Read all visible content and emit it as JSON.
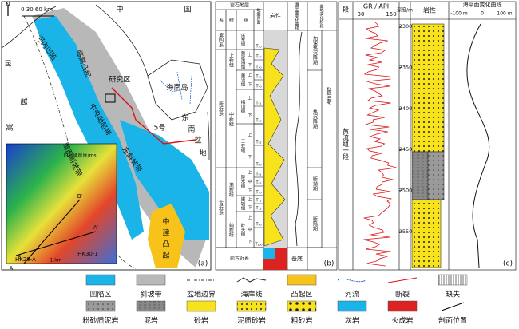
{
  "panel_a": {
    "label": "(a)",
    "north": "N",
    "scale": "0  30 60 km",
    "places": [
      "中",
      "国",
      "昆",
      "越",
      "嵩",
      "研究区",
      "海南岛",
      "5号",
      "中",
      "建",
      "凸",
      "起",
      "东",
      "南",
      "盆",
      "地"
    ],
    "regions": [
      "河内凹陷",
      "临高凸起",
      "莺西斜坡带",
      "中央坳陷带",
      "东斜坡带"
    ],
    "inset": {
      "title": "时间域厚度/ms",
      "wells": [
        "HK29-A",
        "HK30-1"
      ],
      "scale": "1 km",
      "sections": [
        "A",
        "A′",
        "B",
        "B′"
      ]
    }
  },
  "panel_b": {
    "label": "(b)",
    "header": {
      "group": "岩石地层",
      "system": "系",
      "series": "统",
      "formation": "组",
      "seismic": "地震界面",
      "lithology": "岩性",
      "sea_level": "海平面变化曲线",
      "evolution": "盆地演化阶段"
    },
    "systems": [
      "第四系",
      "新近系",
      "古近系",
      "前古近系"
    ],
    "series": [
      "上新统",
      "中新统",
      "渐新统",
      "始新统"
    ],
    "formations": [
      "乐东组",
      "莺歌海组",
      "黄流组",
      "梅山组",
      "三亚组",
      "陵水组",
      "崖城组",
      "岭头组"
    ],
    "members": [
      "上",
      "下",
      "上",
      "下",
      "上",
      "下",
      "上",
      "下",
      "上",
      "中",
      "下",
      "上",
      "下",
      "上",
      "中",
      "下"
    ],
    "seismic": [
      "T₂₀",
      "T₂₇",
      "T₃₀",
      "T₃₁",
      "T₄₀",
      "T₄₁",
      "T₅₀",
      "T₅₂",
      "T₆₀",
      "T₆₁",
      "T₆₂",
      "T₇₀",
      "T₇₁",
      "T₇₂",
      "T₈₀",
      "T₁₀₀"
    ],
    "basement": "基底",
    "stages": [
      "加速热沉降期",
      "热沉降期",
      "断拗期",
      "断陷期"
    ],
    "phase": "裂后期"
  },
  "panel_c": {
    "label": "(c)",
    "member_header": "段",
    "member": "黄流组一段",
    "gr_title": "GR / API",
    "gr_range": [
      "30",
      "150"
    ],
    "depth_title": "深度/m",
    "depths": [
      2300,
      2350,
      2400,
      2450,
      2500,
      2550
    ],
    "lithology": "岩性",
    "sea_title": "海平面变化曲线",
    "sea_range": [
      "-100 m",
      "0",
      "100 m"
    ]
  },
  "legend": [
    "凹陷区",
    "斜坡带",
    "盆地边界",
    "海岸线",
    "凸起区",
    "河流",
    "断裂",
    "缺失",
    "粉砂质泥岩",
    "泥岩",
    "砂岩",
    "泥质砂岩",
    "粗砂岩",
    "灰岩",
    "火成岩",
    "剖面位置"
  ]
}
